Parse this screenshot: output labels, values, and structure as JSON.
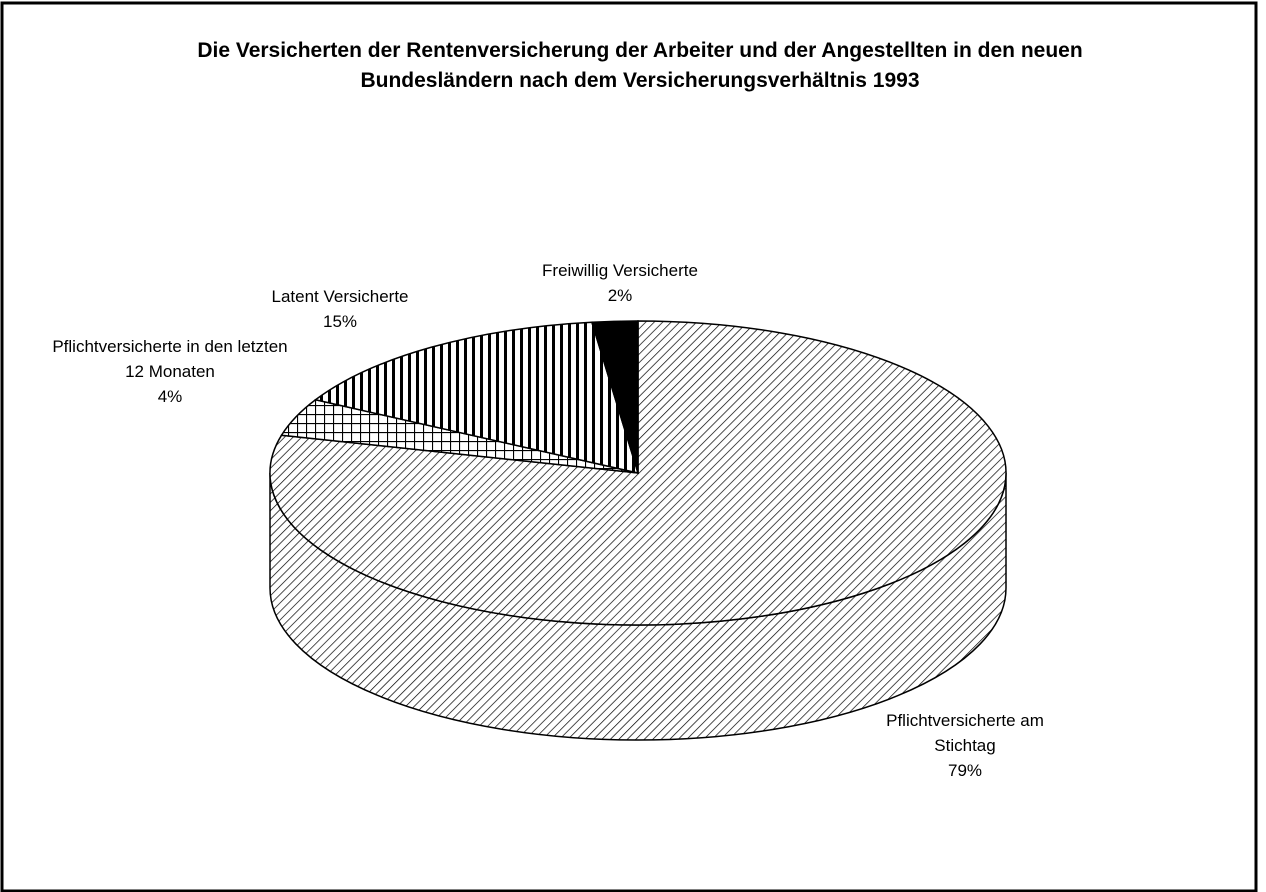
{
  "chart_data": {
    "type": "pie3d",
    "title": "Die Versicherten der Rentenversicherung der Arbeiter und der Angestellten in den neuen Bundesländern nach dem Versicherungsverhältnis 1993",
    "categories": [
      "Pflichtversicherte am Stichtag",
      "Pflichtversicherte in den letzten 12 Monaten",
      "Latent Versicherte",
      "Freiwillig Versicherte"
    ],
    "values": [
      79,
      4,
      15,
      2
    ],
    "value_labels": [
      "79%",
      "4%",
      "15%",
      "2%"
    ],
    "patterns": [
      "diagonal",
      "grid",
      "vertical",
      "solid"
    ]
  }
}
